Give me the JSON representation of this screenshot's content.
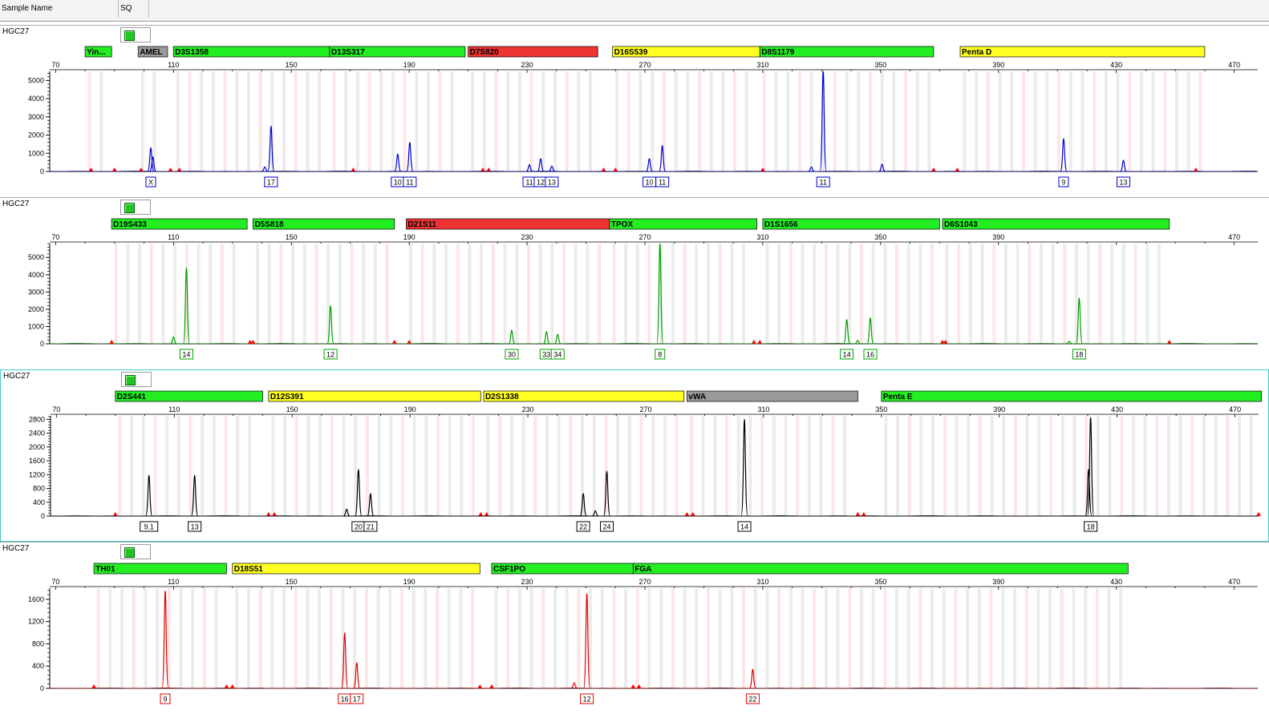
{
  "header": {
    "col_sample": "Sample Name",
    "col_sq": "SQ"
  },
  "colors": {
    "blue": "#0000d0",
    "green": "#00a000",
    "black": "#000000",
    "red": "#e00000",
    "locus_green": "#22ee22",
    "locus_yellow": "#ffff22",
    "locus_red": "#ee3333",
    "locus_gray": "#9a9a9a",
    "bin_gray": "#ececec",
    "bin_pink": "#fde6e6",
    "marker": "#ff0000"
  },
  "chart_data": [
    {
      "type": "line",
      "sample": "HGC27",
      "dye_color": "blue",
      "has_toggle": true,
      "x_ticks": [
        70,
        110,
        150,
        190,
        230,
        270,
        310,
        350,
        390,
        430,
        470
      ],
      "xlim": [
        68,
        478
      ],
      "y_ticks": [
        0,
        1000,
        2000,
        3000,
        4000,
        5000
      ],
      "ylim": [
        0,
        5500
      ],
      "loci": [
        {
          "name": "Yin...",
          "start": 80,
          "end": 89,
          "color": "green"
        },
        {
          "name": "AMEL",
          "start": 98,
          "end": 108,
          "color": "gray"
        },
        {
          "name": "D3S1358",
          "start": 110,
          "end": 163,
          "color": "green"
        },
        {
          "name": "D13S317",
          "start": 163,
          "end": 209,
          "color": "green"
        },
        {
          "name": "D7S820",
          "start": 210,
          "end": 254,
          "color": "red"
        },
        {
          "name": "D16S539",
          "start": 259,
          "end": 309,
          "color": "yellow"
        },
        {
          "name": "D8S1179",
          "start": 309,
          "end": 368,
          "color": "green"
        },
        {
          "name": "Penta D",
          "start": 377,
          "end": 460,
          "color": "yellow"
        }
      ],
      "peaks": [
        {
          "x": 102.3,
          "h": 1300,
          "label": "X"
        },
        {
          "x": 103.0,
          "h": 800,
          "label": ""
        },
        {
          "x": 143.1,
          "h": 2500,
          "label": "17"
        },
        {
          "x": 186.1,
          "h": 950,
          "label": "10"
        },
        {
          "x": 190.2,
          "h": 1600,
          "label": "11"
        },
        {
          "x": 230.8,
          "h": 380,
          "label": "11"
        },
        {
          "x": 234.6,
          "h": 700,
          "label": "12"
        },
        {
          "x": 238.4,
          "h": 300,
          "label": "13"
        },
        {
          "x": 271.5,
          "h": 700,
          "label": "10"
        },
        {
          "x": 275.9,
          "h": 1420,
          "label": "11"
        },
        {
          "x": 330.5,
          "h": 5500,
          "label": "11"
        },
        {
          "x": 350.5,
          "h": 400,
          "label": ""
        },
        {
          "x": 412.1,
          "h": 1800,
          "label": "9"
        },
        {
          "x": 432.4,
          "h": 620,
          "label": "13"
        },
        {
          "x": 141.0,
          "h": 250,
          "label": ""
        },
        {
          "x": 326.5,
          "h": 250,
          "label": ""
        }
      ],
      "markers": [
        82,
        90,
        99,
        109,
        112,
        171,
        215,
        217,
        256,
        260,
        310,
        368,
        376,
        457
      ]
    },
    {
      "type": "line",
      "sample": "HGC27",
      "dye_color": "green",
      "has_toggle": true,
      "x_ticks": [
        70,
        110,
        150,
        190,
        230,
        270,
        310,
        350,
        390,
        470
      ],
      "xlim": [
        68,
        478
      ],
      "y_ticks": [
        0,
        1000,
        2000,
        3000,
        4000,
        5000
      ],
      "ylim": [
        0,
        5800
      ],
      "loci": [
        {
          "name": "D19S433",
          "start": 89,
          "end": 135,
          "color": "green"
        },
        {
          "name": "D5S818",
          "start": 137,
          "end": 185,
          "color": "green"
        },
        {
          "name": "D21S11",
          "start": 189,
          "end": 258,
          "color": "red"
        },
        {
          "name": "TPOX",
          "start": 258,
          "end": 308,
          "color": "green"
        },
        {
          "name": "D1S1656",
          "start": 310,
          "end": 370,
          "color": "green"
        },
        {
          "name": "D6S1043",
          "start": 371,
          "end": 448,
          "color": "green"
        }
      ],
      "peaks": [
        {
          "x": 114.4,
          "h": 4400,
          "label": "14"
        },
        {
          "x": 110.0,
          "h": 400,
          "label": ""
        },
        {
          "x": 163.3,
          "h": 2200,
          "label": "12"
        },
        {
          "x": 224.8,
          "h": 780,
          "label": "30"
        },
        {
          "x": 236.6,
          "h": 700,
          "label": "33"
        },
        {
          "x": 240.4,
          "h": 560,
          "label": "34"
        },
        {
          "x": 275.1,
          "h": 5800,
          "label": "8"
        },
        {
          "x": 338.5,
          "h": 1400,
          "label": "14"
        },
        {
          "x": 346.5,
          "h": 1500,
          "label": "16"
        },
        {
          "x": 417.4,
          "h": 2650,
          "label": "18"
        },
        {
          "x": 342.2,
          "h": 200,
          "label": ""
        },
        {
          "x": 414.0,
          "h": 150,
          "label": ""
        }
      ],
      "markers": [
        89,
        136,
        137,
        185,
        190,
        307,
        309,
        371,
        372,
        448
      ]
    },
    {
      "type": "line",
      "sample": "HGC27",
      "dye_color": "black",
      "has_toggle": true,
      "x_ticks": [
        70,
        110,
        150,
        190,
        230,
        270,
        310,
        350,
        390,
        430,
        470
      ],
      "xlim": [
        68,
        478
      ],
      "y_ticks": [
        0,
        400,
        800,
        1200,
        1600,
        2000,
        2400,
        2800
      ],
      "ylim": [
        0,
        2900
      ],
      "loci": [
        {
          "name": "D2S441",
          "start": 90,
          "end": 140,
          "color": "green"
        },
        {
          "name": "D12S391",
          "start": 142,
          "end": 214,
          "color": "yellow"
        },
        {
          "name": "D2S1338",
          "start": 215,
          "end": 283,
          "color": "yellow"
        },
        {
          "name": "vWA",
          "start": 284,
          "end": 342,
          "color": "gray"
        },
        {
          "name": "Penta E",
          "start": 350,
          "end": 479,
          "color": "green"
        }
      ],
      "peaks": [
        {
          "x": 101.4,
          "h": 1180,
          "label": "9.1"
        },
        {
          "x": 116.9,
          "h": 1180,
          "label": "13"
        },
        {
          "x": 172.5,
          "h": 1350,
          "label": "20"
        },
        {
          "x": 176.6,
          "h": 650,
          "label": "21"
        },
        {
          "x": 168.5,
          "h": 200,
          "label": ""
        },
        {
          "x": 248.8,
          "h": 650,
          "label": "22"
        },
        {
          "x": 252.9,
          "h": 150,
          "label": ""
        },
        {
          "x": 256.8,
          "h": 1300,
          "label": "24"
        },
        {
          "x": 303.5,
          "h": 2800,
          "label": "14"
        },
        {
          "x": 421.0,
          "h": 2850,
          "label": "18"
        },
        {
          "x": 420.3,
          "h": 1350,
          "label": ""
        }
      ],
      "markers": [
        90,
        142,
        144,
        214,
        216,
        284,
        286,
        342,
        344,
        478
      ]
    },
    {
      "type": "line",
      "sample": "HGC27",
      "dye_color": "red",
      "has_toggle": true,
      "x_ticks": [
        70,
        110,
        150,
        190,
        230,
        270,
        310,
        350,
        390,
        430,
        470
      ],
      "xlim": [
        68,
        478
      ],
      "y_ticks": [
        0,
        400,
        800,
        1200,
        1600
      ],
      "ylim": [
        0,
        1800
      ],
      "loci": [
        {
          "name": "TH01",
          "start": 83,
          "end": 128,
          "color": "green"
        },
        {
          "name": "D18S51",
          "start": 130,
          "end": 214,
          "color": "yellow"
        },
        {
          "name": "CSF1PO",
          "start": 218,
          "end": 266,
          "color": "green"
        },
        {
          "name": "FGA",
          "start": 266,
          "end": 434,
          "color": "green"
        }
      ],
      "peaks": [
        {
          "x": 107.2,
          "h": 1750,
          "label": "9"
        },
        {
          "x": 168.1,
          "h": 1000,
          "label": "16"
        },
        {
          "x": 172.2,
          "h": 460,
          "label": "17"
        },
        {
          "x": 250.3,
          "h": 1700,
          "label": "12"
        },
        {
          "x": 306.6,
          "h": 340,
          "label": "22"
        },
        {
          "x": 246.0,
          "h": 100,
          "label": ""
        }
      ],
      "markers": [
        83,
        128,
        130,
        214,
        218,
        266,
        268
      ]
    }
  ]
}
